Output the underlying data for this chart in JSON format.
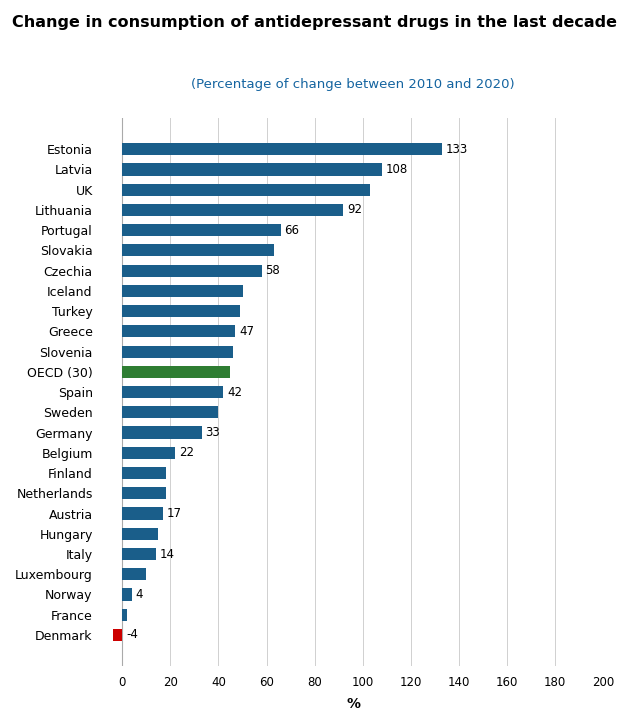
{
  "title": "Change in consumption of antidepressant drugs in the last decade",
  "subtitle": "(Percentage of change between 2010 and 2020)",
  "xlabel": "%",
  "countries": [
    "Estonia",
    "Latvia",
    "UK",
    "Lithuania",
    "Portugal",
    "Slovakia",
    "Czechia",
    "Iceland",
    "Turkey",
    "Greece",
    "Slovenia",
    "OECD (30)",
    "Spain",
    "Sweden",
    "Germany",
    "Belgium",
    "Finland",
    "Netherlands",
    "Austria",
    "Hungary",
    "Italy",
    "Luxembourg",
    "Norway",
    "France",
    "Denmark"
  ],
  "values": [
    133,
    108,
    103,
    92,
    66,
    63,
    58,
    50,
    49,
    47,
    46,
    45,
    42,
    40,
    33,
    22,
    18,
    18,
    17,
    15,
    14,
    10,
    4,
    2,
    -4
  ],
  "bar_colors": [
    "#1a5e8a",
    "#1a5e8a",
    "#1a5e8a",
    "#1a5e8a",
    "#1a5e8a",
    "#1a5e8a",
    "#1a5e8a",
    "#1a5e8a",
    "#1a5e8a",
    "#1a5e8a",
    "#1a5e8a",
    "#2e7d32",
    "#1a5e8a",
    "#1a5e8a",
    "#1a5e8a",
    "#1a5e8a",
    "#1a5e8a",
    "#1a5e8a",
    "#1a5e8a",
    "#1a5e8a",
    "#1a5e8a",
    "#1a5e8a",
    "#1a5e8a",
    "#1a5e8a",
    "#cc0000"
  ],
  "label_values": [
    133,
    108,
    null,
    92,
    66,
    null,
    58,
    null,
    null,
    47,
    null,
    null,
    42,
    null,
    33,
    22,
    null,
    null,
    17,
    null,
    14,
    null,
    4,
    null,
    -4
  ],
  "xlim": [
    -8,
    200
  ],
  "title_fontsize": 11.5,
  "subtitle_fontsize": 9.5,
  "subtitle_color": "#1464a0",
  "background_color": "#ffffff",
  "grid_color": "#d0d0d0"
}
